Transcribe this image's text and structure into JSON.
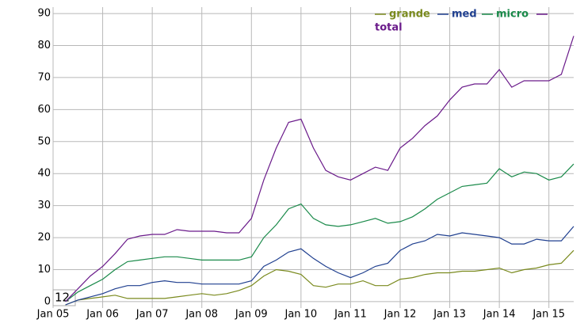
{
  "chart_data": {
    "type": "line",
    "annotation": "12",
    "legend": "top-right",
    "grid": true,
    "xlim": [
      "2005-01",
      "2015-07"
    ],
    "xticks": [
      {
        "value": "2005-01",
        "label": "Jan 05"
      },
      {
        "value": "2006-01",
        "label": "Jan 06"
      },
      {
        "value": "2007-01",
        "label": "Jan 07"
      },
      {
        "value": "2008-01",
        "label": "Jan 08"
      },
      {
        "value": "2009-01",
        "label": "Jan 09"
      },
      {
        "value": "2010-01",
        "label": "Jan 10"
      },
      {
        "value": "2011-01",
        "label": "Jan 11"
      },
      {
        "value": "2012-01",
        "label": "Jan 12"
      },
      {
        "value": "2013-01",
        "label": "Jan 13"
      },
      {
        "value": "2014-01",
        "label": "Jan 14"
      },
      {
        "value": "2015-01",
        "label": "Jan 15"
      }
    ],
    "ylim": [
      -2,
      92
    ],
    "yticks": [
      0,
      10,
      20,
      30,
      40,
      50,
      60,
      70,
      80,
      90
    ],
    "x": [
      "2005-04",
      "2005-07",
      "2005-10",
      "2006-01",
      "2006-04",
      "2006-07",
      "2006-10",
      "2007-01",
      "2007-04",
      "2007-07",
      "2007-10",
      "2008-01",
      "2008-04",
      "2008-07",
      "2008-10",
      "2009-01",
      "2009-04",
      "2009-07",
      "2009-10",
      "2010-01",
      "2010-04",
      "2010-07",
      "2010-10",
      "2011-01",
      "2011-04",
      "2011-07",
      "2011-10",
      "2012-01",
      "2012-04",
      "2012-07",
      "2012-10",
      "2013-01",
      "2013-04",
      "2013-07",
      "2013-10",
      "2014-01",
      "2014-04",
      "2014-07",
      "2014-10",
      "2015-01",
      "2015-04",
      "2015-07"
    ],
    "series": [
      {
        "name": "grande",
        "color": "#7a8a1e",
        "values": [
          -1,
          0.5,
          1,
          1.5,
          2,
          1,
          1,
          1,
          1,
          1.5,
          2,
          2.5,
          2,
          2.5,
          3.5,
          5,
          8,
          10,
          9.5,
          8.5,
          5,
          4.5,
          5.5,
          5.5,
          6.5,
          5,
          5,
          7,
          7.5,
          8.5,
          9,
          9,
          9.5,
          9.5,
          10,
          10.5,
          9,
          10,
          10.5,
          11.5,
          12,
          16
        ]
      },
      {
        "name": "med",
        "color": "#1f3f8f",
        "values": [
          -1,
          0.5,
          1.5,
          2.5,
          4,
          5,
          5,
          6,
          6.5,
          6,
          6,
          5.5,
          5.5,
          5.5,
          5.5,
          6.5,
          11,
          13,
          15.5,
          16.5,
          13.5,
          11,
          9,
          7.5,
          9,
          11,
          12,
          16,
          18,
          19,
          21,
          20.5,
          21.5,
          21,
          20.5,
          20,
          18,
          18,
          19.5,
          19,
          19,
          23.5
        ]
      },
      {
        "name": "micro",
        "color": "#1a8a4a",
        "values": [
          0,
          3,
          5,
          7,
          10,
          12.5,
          13,
          13.5,
          14,
          14,
          13.5,
          13,
          13,
          13,
          13,
          14,
          20,
          24,
          29,
          30.5,
          26,
          24,
          23.5,
          24,
          25,
          26,
          24.5,
          25,
          26.5,
          29,
          32,
          34,
          36,
          36.5,
          37,
          41.5,
          39,
          40.5,
          40,
          38,
          39,
          43
        ]
      },
      {
        "name": "total",
        "color": "#6a1a8a",
        "values": [
          0,
          4,
          8,
          11,
          15,
          19.5,
          20.5,
          21,
          21,
          22.5,
          22,
          22,
          22,
          21.5,
          21.5,
          26,
          38,
          48,
          56,
          57,
          48,
          41,
          39,
          38,
          40,
          42,
          41,
          48,
          51,
          55,
          58,
          63,
          67,
          68,
          68,
          72.5,
          67,
          69,
          69,
          69,
          71,
          83
        ]
      }
    ]
  }
}
